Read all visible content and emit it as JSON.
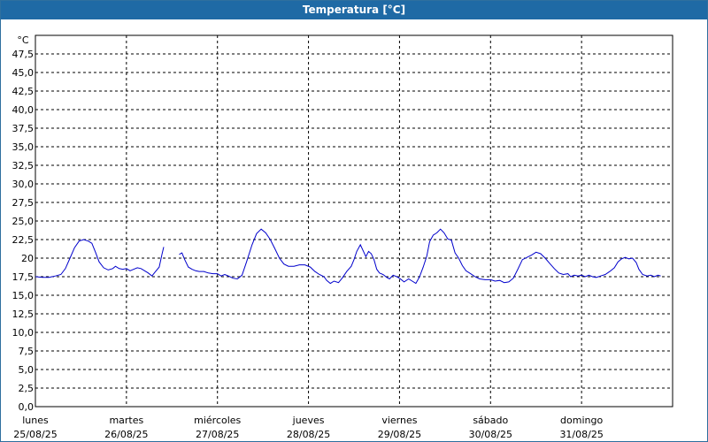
{
  "window": {
    "title": "Temperatura [°C]"
  },
  "colors": {
    "title_bar": "#1f6aa5",
    "series": "#0000cc",
    "grid": "#000000"
  },
  "chart_data": {
    "type": "line",
    "title": "Temperatura [°C]",
    "ylabel": "°C",
    "xlabel": "",
    "ylim": [
      0,
      50
    ],
    "xlim": [
      0,
      7
    ],
    "grid": true,
    "grid_style": "dashed",
    "yticks": [
      "0,0",
      "2,5",
      "5,0",
      "7,5",
      "10,0",
      "12,5",
      "15,0",
      "17,5",
      "20",
      "22,5",
      "25,0",
      "27,5",
      "30,0",
      "32,5",
      "35,0",
      "37,5",
      "40,0",
      "42,5",
      "45,0",
      "47,5"
    ],
    "xticks": [
      {
        "day": "lunes",
        "date": "25/08/25"
      },
      {
        "day": "martes",
        "date": "26/08/25"
      },
      {
        "day": "miércoles",
        "date": "27/08/25"
      },
      {
        "day": "jueves",
        "date": "28/08/25"
      },
      {
        "day": "viernes",
        "date": "29/08/25"
      },
      {
        "day": "sábado",
        "date": "30/08/25"
      },
      {
        "day": "domingo",
        "date": "31/08/25"
      }
    ],
    "series": [
      {
        "segments": [
          [
            [
              0.0,
              17.5
            ],
            [
              0.08,
              17.4
            ],
            [
              0.15,
              17.4
            ],
            [
              0.22,
              17.6
            ],
            [
              0.28,
              17.8
            ],
            [
              0.33,
              18.6
            ],
            [
              0.38,
              20.0
            ],
            [
              0.43,
              21.4
            ],
            [
              0.48,
              22.3
            ],
            [
              0.53,
              22.5
            ],
            [
              0.58,
              22.3
            ],
            [
              0.62,
              22.0
            ],
            [
              0.66,
              20.8
            ],
            [
              0.7,
              19.5
            ],
            [
              0.75,
              18.7
            ],
            [
              0.8,
              18.4
            ],
            [
              0.85,
              18.6
            ],
            [
              0.88,
              18.9
            ],
            [
              0.92,
              18.6
            ],
            [
              0.96,
              18.5
            ],
            [
              1.0,
              18.6
            ],
            [
              1.04,
              18.3
            ],
            [
              1.08,
              18.5
            ],
            [
              1.12,
              18.7
            ],
            [
              1.16,
              18.6
            ],
            [
              1.2,
              18.3
            ],
            [
              1.24,
              18.0
            ],
            [
              1.28,
              17.6
            ],
            [
              1.32,
              18.2
            ],
            [
              1.36,
              18.8
            ],
            [
              1.39,
              20.5
            ],
            [
              1.41,
              21.5
            ]
          ],
          [
            [
              1.58,
              20.5
            ],
            [
              1.61,
              20.7
            ],
            [
              1.64,
              19.8
            ],
            [
              1.68,
              18.8
            ],
            [
              1.72,
              18.5
            ],
            [
              1.76,
              18.3
            ],
            [
              1.8,
              18.2
            ],
            [
              1.85,
              18.2
            ],
            [
              1.9,
              18.0
            ],
            [
              1.95,
              17.9
            ],
            [
              2.0,
              17.9
            ],
            [
              2.04,
              17.6
            ],
            [
              2.08,
              17.8
            ],
            [
              2.12,
              17.6
            ],
            [
              2.17,
              17.3
            ],
            [
              2.22,
              17.2
            ],
            [
              2.27,
              17.7
            ],
            [
              2.32,
              19.5
            ],
            [
              2.38,
              21.8
            ],
            [
              2.43,
              23.3
            ],
            [
              2.48,
              23.9
            ],
            [
              2.53,
              23.4
            ],
            [
              2.58,
              22.5
            ],
            [
              2.63,
              21.3
            ],
            [
              2.68,
              20.0
            ],
            [
              2.73,
              19.2
            ],
            [
              2.78,
              18.9
            ],
            [
              2.84,
              18.9
            ],
            [
              2.9,
              19.1
            ],
            [
              2.96,
              19.1
            ],
            [
              3.02,
              18.8
            ],
            [
              3.07,
              18.2
            ],
            [
              3.12,
              17.8
            ],
            [
              3.17,
              17.5
            ],
            [
              3.2,
              17.0
            ],
            [
              3.24,
              16.6
            ],
            [
              3.28,
              16.9
            ],
            [
              3.33,
              16.7
            ],
            [
              3.37,
              17.3
            ],
            [
              3.42,
              18.2
            ],
            [
              3.47,
              18.9
            ],
            [
              3.5,
              19.8
            ],
            [
              3.53,
              20.9
            ],
            [
              3.57,
              21.8
            ],
            [
              3.6,
              21.0
            ],
            [
              3.63,
              20.2
            ],
            [
              3.66,
              20.9
            ],
            [
              3.69,
              20.6
            ],
            [
              3.72,
              19.8
            ],
            [
              3.75,
              18.5
            ],
            [
              3.78,
              18.0
            ],
            [
              3.82,
              17.8
            ],
            [
              3.86,
              17.4
            ],
            [
              3.89,
              17.2
            ],
            [
              3.93,
              17.7
            ],
            [
              3.97,
              17.5
            ],
            [
              4.0,
              17.3
            ],
            [
              4.05,
              16.8
            ],
            [
              4.1,
              17.2
            ],
            [
              4.14,
              16.9
            ],
            [
              4.18,
              16.6
            ],
            [
              4.22,
              17.5
            ],
            [
              4.26,
              18.8
            ],
            [
              4.3,
              20.3
            ],
            [
              4.33,
              22.2
            ],
            [
              4.37,
              23.1
            ],
            [
              4.41,
              23.4
            ],
            [
              4.45,
              23.9
            ],
            [
              4.49,
              23.4
            ],
            [
              4.53,
              22.6
            ],
            [
              4.57,
              22.4
            ],
            [
              4.61,
              20.7
            ],
            [
              4.65,
              20.0
            ],
            [
              4.69,
              19.0
            ],
            [
              4.73,
              18.3
            ],
            [
              4.78,
              17.9
            ],
            [
              4.83,
              17.5
            ],
            [
              4.88,
              17.2
            ],
            [
              4.94,
              17.1
            ],
            [
              5.0,
              17.1
            ],
            [
              5.05,
              16.9
            ],
            [
              5.1,
              17.0
            ],
            [
              5.15,
              16.7
            ],
            [
              5.2,
              16.8
            ],
            [
              5.25,
              17.3
            ],
            [
              5.3,
              18.5
            ],
            [
              5.35,
              19.8
            ],
            [
              5.4,
              20.1
            ],
            [
              5.45,
              20.4
            ],
            [
              5.5,
              20.8
            ],
            [
              5.55,
              20.6
            ],
            [
              5.6,
              20.0
            ],
            [
              5.65,
              19.3
            ],
            [
              5.7,
              18.6
            ],
            [
              5.75,
              18.0
            ],
            [
              5.8,
              17.8
            ],
            [
              5.85,
              17.9
            ],
            [
              5.88,
              17.5
            ],
            [
              5.92,
              17.7
            ],
            [
              5.96,
              17.6
            ],
            [
              6.0,
              17.7
            ],
            [
              6.04,
              17.5
            ],
            [
              6.08,
              17.7
            ],
            [
              6.12,
              17.5
            ],
            [
              6.16,
              17.4
            ],
            [
              6.21,
              17.6
            ],
            [
              6.26,
              17.8
            ],
            [
              6.31,
              18.2
            ],
            [
              6.36,
              18.7
            ],
            [
              6.4,
              19.5
            ],
            [
              6.44,
              19.9
            ],
            [
              6.48,
              20.1
            ],
            [
              6.52,
              19.9
            ],
            [
              6.56,
              20.0
            ],
            [
              6.6,
              19.4
            ],
            [
              6.63,
              18.5
            ],
            [
              6.67,
              17.8
            ],
            [
              6.72,
              17.6
            ],
            [
              6.76,
              17.7
            ],
            [
              6.8,
              17.5
            ],
            [
              6.84,
              17.7
            ],
            [
              6.87,
              17.6
            ]
          ]
        ]
      }
    ]
  }
}
